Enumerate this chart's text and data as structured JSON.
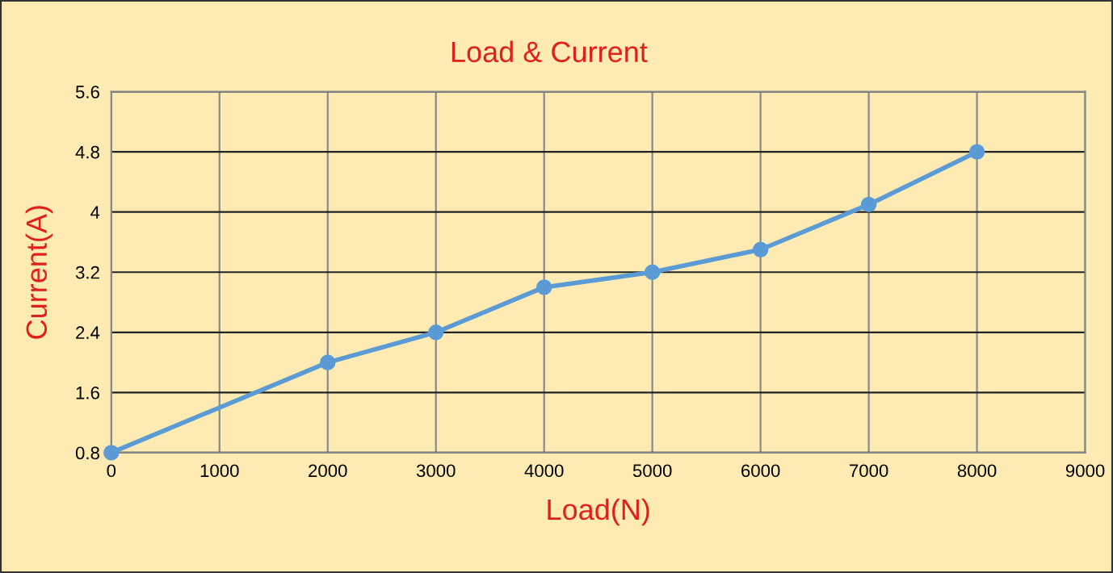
{
  "chart_data": {
    "type": "line",
    "title": "Load & Current",
    "xlabel": "Load(N)",
    "ylabel": "Current(A)",
    "x": [
      0,
      2000,
      3000,
      4000,
      5000,
      6000,
      7000,
      8000
    ],
    "series": [
      {
        "color": "#5b9bd5",
        "values": [
          0.8,
          2.0,
          2.4,
          3.0,
          3.2,
          3.5,
          4.1,
          4.8
        ]
      }
    ],
    "xlim": [
      0,
      9000
    ],
    "xticks": [
      0,
      1000,
      2000,
      3000,
      4000,
      5000,
      6000,
      7000,
      8000,
      9000
    ],
    "ylim": [
      0.8,
      5.6
    ],
    "yticks": [
      0.8,
      1.6,
      2.4,
      3.2,
      4,
      4.8,
      5.6
    ],
    "grid": true,
    "marker": "circle",
    "line_style": "solid",
    "legend": false
  }
}
